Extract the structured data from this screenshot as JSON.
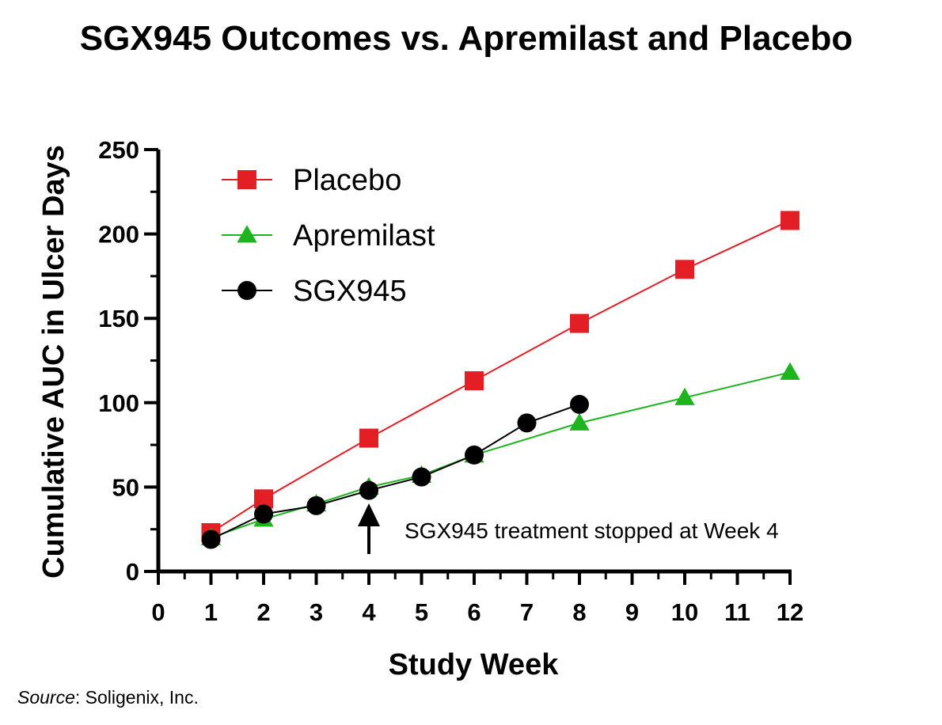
{
  "chart_data": {
    "type": "line",
    "title": "SGX945 Outcomes vs. Apremilast and Placebo",
    "xlabel": "Study Week",
    "ylabel": "Cumulative AUC in Ulcer Days",
    "xlim": [
      0,
      12
    ],
    "ylim": [
      0,
      250
    ],
    "x_ticks": [
      0,
      1,
      2,
      3,
      4,
      5,
      6,
      7,
      8,
      9,
      10,
      11,
      12
    ],
    "y_ticks": [
      0,
      50,
      100,
      150,
      200,
      250
    ],
    "grid": false,
    "legend_position": "top-left",
    "series": [
      {
        "name": "Placebo",
        "color": "#e31e24",
        "marker": "square",
        "x": [
          1,
          2,
          4,
          6,
          8,
          10,
          12
        ],
        "y": [
          23,
          43,
          79,
          113,
          147,
          179,
          208
        ]
      },
      {
        "name": "Apremilast",
        "color": "#1db41d",
        "marker": "triangle",
        "x": [
          1,
          2,
          3,
          4,
          5,
          6,
          8,
          10,
          12
        ],
        "y": [
          20,
          31,
          40,
          50,
          57,
          69,
          88,
          103,
          118
        ]
      },
      {
        "name": "SGX945",
        "color": "#000000",
        "marker": "circle",
        "x": [
          1,
          2,
          3,
          4,
          5,
          6,
          7,
          8
        ],
        "y": [
          19,
          34,
          39,
          48,
          56,
          69,
          88,
          99
        ]
      }
    ],
    "annotations": [
      {
        "text": "SGX945 treatment stopped at Week 4",
        "x": 4,
        "arrow_up": true
      }
    ]
  },
  "source": {
    "prefix": "Source",
    "text": ": Soligenix, Inc."
  }
}
